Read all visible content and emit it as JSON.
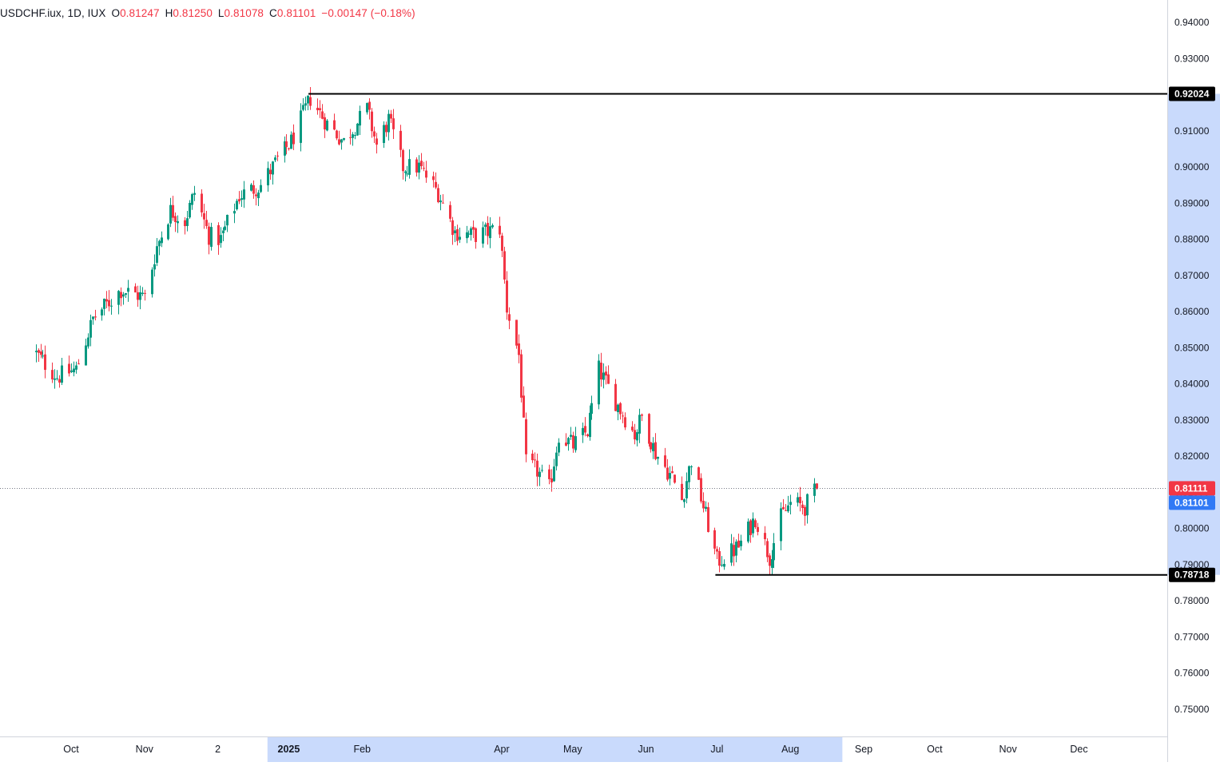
{
  "header": {
    "symbol": "USDCHF.iux",
    "interval": "1D",
    "exchange": "IUX",
    "o_label": "O",
    "o_value": "0.81247",
    "h_label": "H",
    "h_value": "0.81250",
    "l_label": "L",
    "l_value": "0.81078",
    "c_label": "C",
    "c_value": "0.81101",
    "change": "−0.00147",
    "change_pct": "(−0.18%)"
  },
  "colors": {
    "up": "#089981",
    "down": "#f23645",
    "axis_highlight": "#c9dafc",
    "last_price_bg": "#3179f5",
    "level_line": "#000000"
  },
  "price_axis": {
    "ticks": [
      "0.94000",
      "0.93000",
      "0.92000",
      "0.91000",
      "0.90000",
      "0.89000",
      "0.88000",
      "0.87000",
      "0.86000",
      "0.85000",
      "0.84000",
      "0.83000",
      "0.82000",
      "0.81000",
      "0.80000",
      "0.79000",
      "0.78000",
      "0.77000",
      "0.76000",
      "0.75000"
    ]
  },
  "time_axis": {
    "labels": [
      {
        "text": "Oct",
        "bold": false
      },
      {
        "text": "Nov",
        "bold": false
      },
      {
        "text": "2",
        "bold": false
      },
      {
        "text": "2025",
        "bold": true
      },
      {
        "text": "Feb",
        "bold": false
      },
      {
        "text": "Apr",
        "bold": false
      },
      {
        "text": "May",
        "bold": false
      },
      {
        "text": "Jun",
        "bold": false
      },
      {
        "text": "Jul",
        "bold": false
      },
      {
        "text": "Aug",
        "bold": false
      },
      {
        "text": "Sep",
        "bold": false
      },
      {
        "text": "Oct",
        "bold": false
      },
      {
        "text": "Nov",
        "bold": false
      },
      {
        "text": "Dec",
        "bold": false
      }
    ]
  },
  "price_labels": {
    "high_level": "0.92024",
    "low_level": "0.78718",
    "bid": "0.81111",
    "last": "0.81101"
  },
  "chart_data": {
    "type": "candlestick",
    "symbol": "USDCHF.iux",
    "interval": "1D",
    "ylim": [
      0.745,
      0.944
    ],
    "horizontal_levels": [
      0.92024,
      0.78718
    ],
    "current_price_line": 0.81111,
    "anchors": [
      {
        "date": "2024-09-15",
        "close": 0.849
      },
      {
        "date": "2024-09-25",
        "close": 0.842
      },
      {
        "date": "2024-10-03",
        "close": 0.844
      },
      {
        "date": "2024-10-10",
        "close": 0.858
      },
      {
        "date": "2024-10-22",
        "close": 0.866
      },
      {
        "date": "2024-11-01",
        "close": 0.864
      },
      {
        "date": "2024-11-06",
        "close": 0.878
      },
      {
        "date": "2024-11-12",
        "close": 0.888
      },
      {
        "date": "2024-11-18",
        "close": 0.885
      },
      {
        "date": "2024-11-22",
        "close": 0.893
      },
      {
        "date": "2024-11-28",
        "close": 0.881
      },
      {
        "date": "2024-12-03",
        "close": 0.88
      },
      {
        "date": "2024-12-11",
        "close": 0.892
      },
      {
        "date": "2024-12-20",
        "close": 0.895
      },
      {
        "date": "2024-12-27",
        "close": 0.902
      },
      {
        "date": "2025-01-02",
        "close": 0.907
      },
      {
        "date": "2025-01-10",
        "close": 0.919
      },
      {
        "date": "2025-01-17",
        "close": 0.912
      },
      {
        "date": "2025-01-24",
        "close": 0.907
      },
      {
        "date": "2025-02-03",
        "close": 0.916
      },
      {
        "date": "2025-02-07",
        "close": 0.906
      },
      {
        "date": "2025-02-12",
        "close": 0.913
      },
      {
        "date": "2025-02-18",
        "close": 0.9
      },
      {
        "date": "2025-02-25",
        "close": 0.9
      },
      {
        "date": "2025-03-05",
        "close": 0.893
      },
      {
        "date": "2025-03-12",
        "close": 0.882
      },
      {
        "date": "2025-03-20",
        "close": 0.881
      },
      {
        "date": "2025-03-31",
        "close": 0.883
      },
      {
        "date": "2025-04-03",
        "close": 0.861
      },
      {
        "date": "2025-04-08",
        "close": 0.848
      },
      {
        "date": "2025-04-11",
        "close": 0.818
      },
      {
        "date": "2025-04-16",
        "close": 0.816
      },
      {
        "date": "2025-04-21",
        "close": 0.811
      },
      {
        "date": "2025-04-25",
        "close": 0.826
      },
      {
        "date": "2025-05-01",
        "close": 0.823
      },
      {
        "date": "2025-05-07",
        "close": 0.827
      },
      {
        "date": "2025-05-12",
        "close": 0.844
      },
      {
        "date": "2025-05-20",
        "close": 0.834
      },
      {
        "date": "2025-05-27",
        "close": 0.826
      },
      {
        "date": "2025-05-30",
        "close": 0.831
      },
      {
        "date": "2025-06-05",
        "close": 0.821
      },
      {
        "date": "2025-06-12",
        "close": 0.814
      },
      {
        "date": "2025-06-16",
        "close": 0.808
      },
      {
        "date": "2025-06-20",
        "close": 0.819
      },
      {
        "date": "2025-06-25",
        "close": 0.806
      },
      {
        "date": "2025-07-01",
        "close": 0.791
      },
      {
        "date": "2025-07-04",
        "close": 0.792
      },
      {
        "date": "2025-07-10",
        "close": 0.795
      },
      {
        "date": "2025-07-17",
        "close": 0.803
      },
      {
        "date": "2025-07-23",
        "close": 0.792
      },
      {
        "date": "2025-07-28",
        "close": 0.803
      },
      {
        "date": "2025-08-01",
        "close": 0.807
      },
      {
        "date": "2025-08-07",
        "close": 0.806
      },
      {
        "date": "2025-08-12",
        "close": 0.811
      }
    ],
    "last_candle": {
      "date": "2025-08-12",
      "open": 0.81247,
      "high": 0.8125,
      "low": 0.81078,
      "close": 0.81101
    }
  }
}
